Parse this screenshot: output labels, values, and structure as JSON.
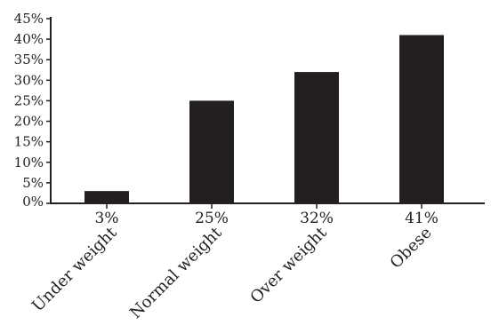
{
  "chart_data": {
    "type": "bar",
    "categories": [
      "Under weight",
      "Normal weight",
      "Over weight",
      "Obese"
    ],
    "values": [
      3,
      25,
      32,
      41
    ],
    "value_labels": [
      "3%",
      "25%",
      "32%",
      "41%"
    ],
    "y_ticks": [
      "0%",
      "5%",
      "10%",
      "15%",
      "20%",
      "25%",
      "30%",
      "35%",
      "40%",
      "45%"
    ],
    "ylim": [
      0,
      45
    ],
    "y_unit": "%",
    "grid": false,
    "legend": "none",
    "bar_color": "#231f20",
    "axis_color": "#231f20",
    "title": "",
    "xlabel": "",
    "ylabel": ""
  }
}
